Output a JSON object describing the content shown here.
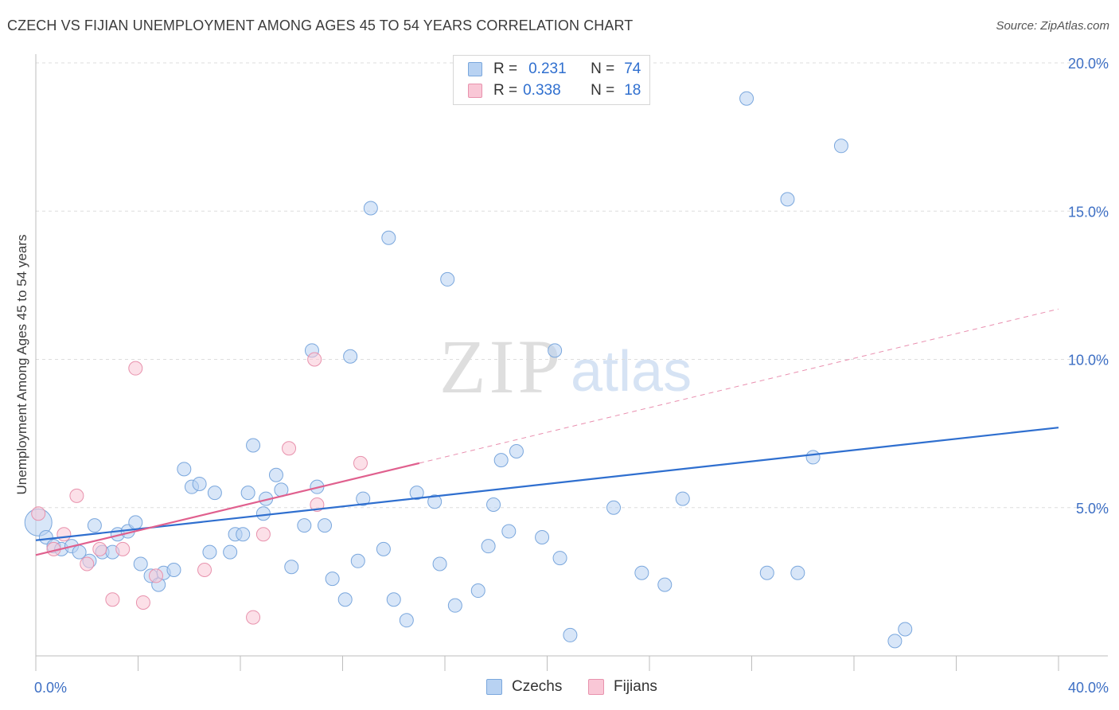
{
  "header": {
    "title": "CZECH VS FIJIAN UNEMPLOYMENT AMONG AGES 45 TO 54 YEARS CORRELATION CHART",
    "source": "Source: ZipAtlas.com"
  },
  "watermark": {
    "zip": "ZIP",
    "atlas": "atlas"
  },
  "legend": {
    "rows": [
      {
        "r_label": "R =",
        "r_value": "0.231",
        "n_label": "N =",
        "n_value": "74",
        "color": "#a9c8f0",
        "border": "#6f9fdc"
      },
      {
        "r_label": "R =",
        "r_value": "0.338",
        "n_label": "N =",
        "n_value": "18",
        "color": "#f8bfd0",
        "border": "#e88aa7"
      }
    ]
  },
  "bottom_legend": {
    "czechs": "Czechs",
    "fijians": "Fijians"
  },
  "colors": {
    "czech_fill": "#b8d2f2",
    "czech_stroke": "#7aa7dd",
    "czech_line": "#2f6fcf",
    "fijian_fill": "#f9c7d6",
    "fijian_stroke": "#e892ad",
    "fijian_line": "#e0608e",
    "tick_text": "#3d6fc4",
    "grid": "#dddddd"
  },
  "chart_data": {
    "type": "scatter",
    "title": "CZECH VS FIJIAN UNEMPLOYMENT AMONG AGES 45 TO 54 YEARS CORRELATION CHART",
    "xlabel": "",
    "ylabel": "Unemployment Among Ages 45 to 54 years",
    "xlim": [
      0,
      40
    ],
    "ylim": [
      0,
      20.5
    ],
    "x_tick_labels": [
      "0.0%",
      "40.0%"
    ],
    "y_ticks": [
      5,
      10,
      15,
      20
    ],
    "y_tick_labels": [
      "5.0%",
      "10.0%",
      "15.0%",
      "20.0%"
    ],
    "grid": true,
    "series": [
      {
        "name": "Czechs",
        "r": 0.231,
        "n": 74,
        "trend": {
          "x0": 0,
          "y0": 3.9,
          "x1": 40,
          "y1": 7.7
        },
        "points": [
          [
            0.1,
            4.5
          ],
          [
            0.4,
            4.0
          ],
          [
            0.7,
            3.7
          ],
          [
            1.0,
            3.6
          ],
          [
            1.4,
            3.7
          ],
          [
            1.7,
            3.5
          ],
          [
            2.1,
            3.2
          ],
          [
            2.3,
            4.4
          ],
          [
            2.6,
            3.5
          ],
          [
            3.0,
            3.5
          ],
          [
            3.2,
            4.1
          ],
          [
            3.6,
            4.2
          ],
          [
            3.9,
            4.5
          ],
          [
            4.1,
            3.1
          ],
          [
            4.5,
            2.7
          ],
          [
            4.8,
            2.4
          ],
          [
            5.0,
            2.8
          ],
          [
            5.4,
            2.9
          ],
          [
            5.8,
            6.3
          ],
          [
            6.1,
            5.7
          ],
          [
            6.4,
            5.8
          ],
          [
            6.8,
            3.5
          ],
          [
            7.0,
            5.5
          ],
          [
            7.6,
            3.5
          ],
          [
            7.8,
            4.1
          ],
          [
            8.1,
            4.1
          ],
          [
            8.3,
            5.5
          ],
          [
            8.5,
            7.1
          ],
          [
            8.9,
            4.8
          ],
          [
            9.0,
            5.3
          ],
          [
            9.4,
            6.1
          ],
          [
            9.6,
            5.6
          ],
          [
            10.0,
            3.0
          ],
          [
            10.5,
            4.4
          ],
          [
            10.8,
            10.3
          ],
          [
            11.0,
            5.7
          ],
          [
            11.3,
            4.4
          ],
          [
            11.6,
            2.6
          ],
          [
            12.1,
            1.9
          ],
          [
            12.3,
            10.1
          ],
          [
            12.6,
            3.2
          ],
          [
            12.8,
            5.3
          ],
          [
            13.1,
            15.1
          ],
          [
            13.6,
            3.6
          ],
          [
            13.8,
            14.1
          ],
          [
            14.0,
            1.9
          ],
          [
            14.5,
            1.2
          ],
          [
            14.9,
            5.5
          ],
          [
            15.6,
            5.2
          ],
          [
            15.8,
            3.1
          ],
          [
            16.1,
            12.7
          ],
          [
            16.4,
            1.7
          ],
          [
            17.3,
            2.2
          ],
          [
            17.7,
            3.7
          ],
          [
            17.9,
            5.1
          ],
          [
            18.2,
            6.6
          ],
          [
            18.5,
            4.2
          ],
          [
            18.8,
            6.9
          ],
          [
            19.8,
            4.0
          ],
          [
            20.3,
            10.3
          ],
          [
            20.5,
            3.3
          ],
          [
            20.9,
            0.7
          ],
          [
            22.6,
            5.0
          ],
          [
            23.7,
            2.8
          ],
          [
            24.6,
            2.4
          ],
          [
            25.3,
            5.3
          ],
          [
            27.8,
            18.8
          ],
          [
            28.6,
            2.8
          ],
          [
            29.4,
            15.4
          ],
          [
            29.8,
            2.8
          ],
          [
            30.4,
            6.7
          ],
          [
            31.5,
            17.2
          ],
          [
            33.6,
            0.5
          ],
          [
            34.0,
            0.9
          ]
        ],
        "point_sizes": [
          30,
          16
        ]
      },
      {
        "name": "Fijians",
        "r": 0.338,
        "n": 18,
        "trend": {
          "x0": 0,
          "y0": 3.4,
          "x1": 15,
          "y1": 6.5,
          "dashed_to_x": 40,
          "dashed_to_y": 11.7
        },
        "points": [
          [
            0.1,
            4.8
          ],
          [
            0.7,
            3.6
          ],
          [
            1.1,
            4.1
          ],
          [
            1.6,
            5.4
          ],
          [
            2.0,
            3.1
          ],
          [
            2.5,
            3.6
          ],
          [
            3.0,
            1.9
          ],
          [
            3.4,
            3.6
          ],
          [
            3.9,
            9.7
          ],
          [
            4.2,
            1.8
          ],
          [
            4.7,
            2.7
          ],
          [
            6.6,
            2.9
          ],
          [
            8.5,
            1.3
          ],
          [
            8.9,
            4.1
          ],
          [
            9.9,
            7.0
          ],
          [
            10.9,
            10.0
          ],
          [
            11.0,
            5.1
          ],
          [
            12.7,
            6.5
          ]
        ]
      }
    ]
  }
}
